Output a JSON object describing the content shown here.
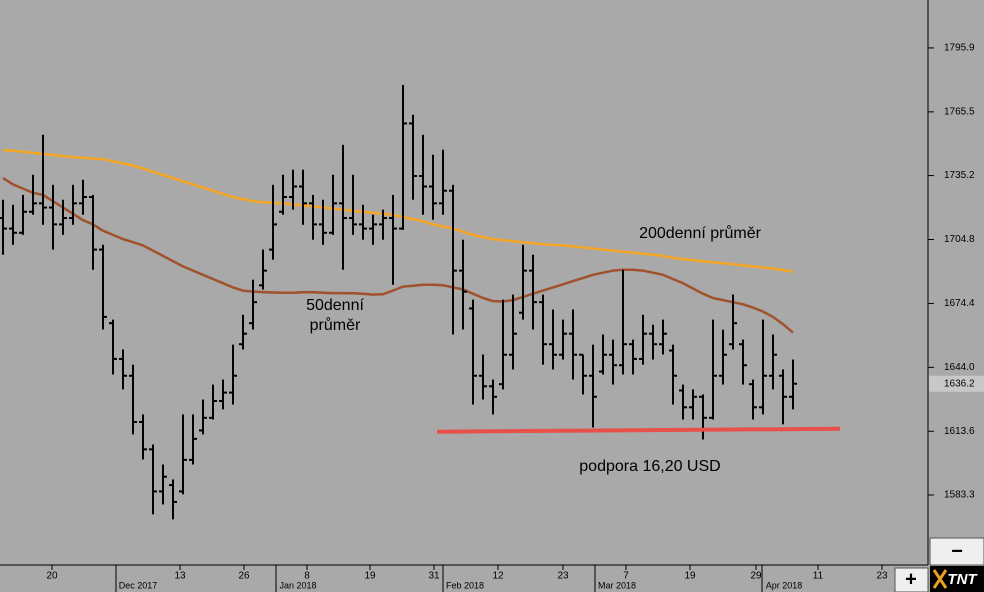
{
  "chart_data": {
    "type": "ohlc",
    "ylim": [
      1550.0,
      1818.7
    ],
    "yticks": [
      1583.3,
      1613.6,
      {
        "value": 1644.0,
        "label": "1644.0"
      },
      1674.4,
      1704.8,
      1735.2,
      1765.5,
      1795.9
    ],
    "xlim": [
      -0.3,
      92.5
    ],
    "xticks": [
      {
        "value": 4.9,
        "label": "20"
      },
      {
        "value": 17.7,
        "label": "13"
      },
      {
        "value": 24.1,
        "label": "26"
      },
      {
        "value": 30.4,
        "label": "8"
      },
      {
        "value": 36.7,
        "label": "19"
      },
      {
        "value": 43.1,
        "label": "31"
      },
      {
        "value": 49.5,
        "label": "12"
      },
      {
        "value": 56.0,
        "label": "23"
      },
      {
        "value": 62.3,
        "label": "7"
      },
      {
        "value": 68.7,
        "label": "19"
      },
      {
        "value": 75.3,
        "label": "29"
      },
      {
        "value": 81.5,
        "label": "11"
      },
      {
        "value": 87.9,
        "label": "23"
      }
    ],
    "month_ticks": [
      {
        "value": 11.3,
        "label": "Dec 2017"
      },
      {
        "value": 27.3,
        "label": "Jan 2018"
      },
      {
        "value": 44.0,
        "label": "Feb 2018"
      },
      {
        "value": 59.2,
        "label": "Mar 2018"
      },
      {
        "value": 75.9,
        "label": "Apr 2018"
      }
    ],
    "ohlc": {
      "color": "#000000",
      "open": [
        1715,
        1710,
        1708,
        1718,
        1722,
        1720,
        1712,
        1715,
        1722,
        1725,
        1700,
        1665,
        1648,
        1640,
        1618,
        1605,
        1585,
        1588,
        1585,
        1600,
        1614,
        1620,
        1628,
        1632,
        1655,
        1665,
        1683,
        1700,
        1718,
        1725,
        1730,
        1722,
        1712,
        1708,
        1722,
        1715,
        1712,
        1710,
        1712,
        1715,
        1710,
        1760,
        1735,
        1730,
        1722,
        1728,
        1690,
        1672,
        1640,
        1635,
        1636,
        1650,
        1670,
        1690,
        1675,
        1655,
        1650,
        1660,
        1650,
        1640,
        1642,
        1650,
        1645,
        1655,
        1648,
        1660,
        1655,
        1652,
        1633,
        1625,
        1630,
        1620,
        1640,
        1655,
        1655,
        1636,
        1625,
        1640,
        1640,
        1630
      ],
      "high": [
        1723.7,
        1721.3,
        1726,
        1735.6,
        1754.6,
        1730.8,
        1723.7,
        1730.8,
        1733.2,
        1726,
        1702.3,
        1666.7,
        1652.5,
        1645.3,
        1621.6,
        1607.3,
        1597.8,
        1590.7,
        1621.6,
        1621.6,
        1628.7,
        1635.8,
        1638.2,
        1654.8,
        1669,
        1685.7,
        1700,
        1730.8,
        1735.6,
        1738,
        1738,
        1726,
        1723.7,
        1735.6,
        1749.8,
        1735.6,
        1721.3,
        1716.6,
        1719,
        1726,
        1778.3,
        1764.1,
        1754.6,
        1745.1,
        1747.5,
        1730.8,
        1704.7,
        1676.2,
        1650.1,
        1638.2,
        1676.2,
        1678.6,
        1702.3,
        1697.6,
        1678.6,
        1671.5,
        1666.7,
        1671.5,
        1650.1,
        1654.8,
        1659.6,
        1657.2,
        1690.4,
        1657.2,
        1669,
        1664.3,
        1666.7,
        1654.8,
        1635.8,
        1633.5,
        1631.1,
        1666.7,
        1661.9,
        1678.6,
        1657.2,
        1638.2,
        1666.7,
        1659.6,
        1643,
        1647.7
      ],
      "low": [
        1697.6,
        1702.3,
        1707,
        1716.6,
        1711.8,
        1700,
        1707,
        1711.8,
        1716.6,
        1690.4,
        1662,
        1640.6,
        1633.5,
        1612.1,
        1600.2,
        1574.1,
        1578.8,
        1571.7,
        1583.6,
        1597.8,
        1612.1,
        1619.2,
        1624,
        1626.3,
        1652.5,
        1662,
        1681,
        1695.2,
        1716.6,
        1719,
        1711.8,
        1704.7,
        1702.3,
        1707,
        1690.4,
        1707,
        1704.7,
        1702.3,
        1704.7,
        1683.3,
        1709.4,
        1723.7,
        1716.6,
        1714.2,
        1716.6,
        1659.6,
        1662,
        1626.3,
        1628.7,
        1621.6,
        1633.5,
        1643,
        1666.7,
        1662,
        1645.3,
        1643,
        1647.7,
        1638.2,
        1631.1,
        1615.4,
        1640.6,
        1635.8,
        1640.6,
        1640.6,
        1645.3,
        1647.7,
        1650.1,
        1626.3,
        1619.2,
        1619.2,
        1609.7,
        1619.2,
        1635.8,
        1652.5,
        1635.8,
        1619.2,
        1621.6,
        1633.5,
        1616.9,
        1624
      ],
      "close": [
        1710,
        1708,
        1718,
        1722,
        1720,
        1712,
        1715,
        1722,
        1725,
        1700,
        1668,
        1648,
        1640,
        1618,
        1605,
        1585,
        1592,
        1580,
        1600,
        1610,
        1620,
        1628,
        1632,
        1640,
        1660,
        1675,
        1690,
        1712,
        1725,
        1730,
        1722,
        1712,
        1708,
        1722,
        1715,
        1712,
        1710,
        1712,
        1715,
        1710,
        1760,
        1735,
        1730,
        1722,
        1728,
        1690,
        1680,
        1640,
        1635,
        1630,
        1650,
        1660,
        1690,
        1675,
        1655,
        1650,
        1660,
        1650,
        1640,
        1630,
        1650,
        1645,
        1655,
        1648,
        1660,
        1655,
        1660,
        1640,
        1625,
        1630,
        1620,
        1640,
        1650,
        1665,
        1645,
        1625,
        1640,
        1650,
        1630,
        1636.2
      ]
    },
    "series": [
      {
        "label_lines": [
          "200denní průměr"
        ],
        "color": "#f5a623",
        "values": [
          1747.3,
          1747,
          1746.5,
          1746,
          1745.5,
          1745,
          1744.5,
          1744,
          1743.7,
          1743.3,
          1743,
          1742,
          1741,
          1740,
          1738.5,
          1737,
          1735.5,
          1734,
          1732.5,
          1731,
          1729.5,
          1728,
          1726.5,
          1725,
          1724,
          1723,
          1722.5,
          1722.3,
          1722,
          1721.5,
          1721,
          1720.5,
          1720,
          1719.5,
          1719,
          1718.5,
          1718,
          1717.5,
          1717,
          1716.5,
          1715.5,
          1714.5,
          1713.5,
          1712,
          1711,
          1710,
          1708.5,
          1707,
          1706,
          1705,
          1704.5,
          1704,
          1703.5,
          1703,
          1702.5,
          1702.3,
          1702,
          1701.5,
          1701,
          1700.5,
          1700,
          1699.5,
          1699,
          1698.5,
          1698,
          1697.5,
          1697,
          1696,
          1695.5,
          1695,
          1694.5,
          1694,
          1693.5,
          1693,
          1692.5,
          1692,
          1691.5,
          1691,
          1690.3,
          1689.5
        ]
      },
      {
        "label_lines": [
          "50denní",
          "průměr"
        ],
        "color": "#a0522d",
        "values": [
          1734,
          1731,
          1729,
          1727,
          1726,
          1723,
          1720,
          1717,
          1714,
          1712,
          1709,
          1707,
          1705,
          1703.5,
          1702,
          1699.5,
          1697,
          1694.5,
          1692,
          1690,
          1688,
          1686,
          1684,
          1682,
          1680.5,
          1680,
          1679.8,
          1679.6,
          1679.5,
          1679.5,
          1679.7,
          1679.8,
          1679.5,
          1679.3,
          1679.3,
          1679.2,
          1679,
          1678.6,
          1678.8,
          1680.5,
          1682.4,
          1682.8,
          1683.3,
          1683.3,
          1683,
          1682,
          1681,
          1679,
          1677,
          1675.5,
          1675.3,
          1676,
          1677.5,
          1679,
          1680.5,
          1682,
          1683.5,
          1685,
          1686.5,
          1688,
          1689,
          1690,
          1690.4,
          1690.4,
          1690,
          1689,
          1688,
          1686,
          1684,
          1681.5,
          1679,
          1677,
          1676,
          1675,
          1674,
          1672.4,
          1670.5,
          1668,
          1664.5,
          1660.5
        ]
      }
    ],
    "support": {
      "label": "podpora 16,20 USD",
      "x": [
        43.4,
        83.7
      ],
      "values": [
        1613.4,
        1614.8
      ],
      "color": "#e8504a"
    },
    "last_price": 1636.2
  },
  "ui": {
    "zoom_out": "−",
    "zoom_in": "+",
    "logo": "TNT"
  }
}
